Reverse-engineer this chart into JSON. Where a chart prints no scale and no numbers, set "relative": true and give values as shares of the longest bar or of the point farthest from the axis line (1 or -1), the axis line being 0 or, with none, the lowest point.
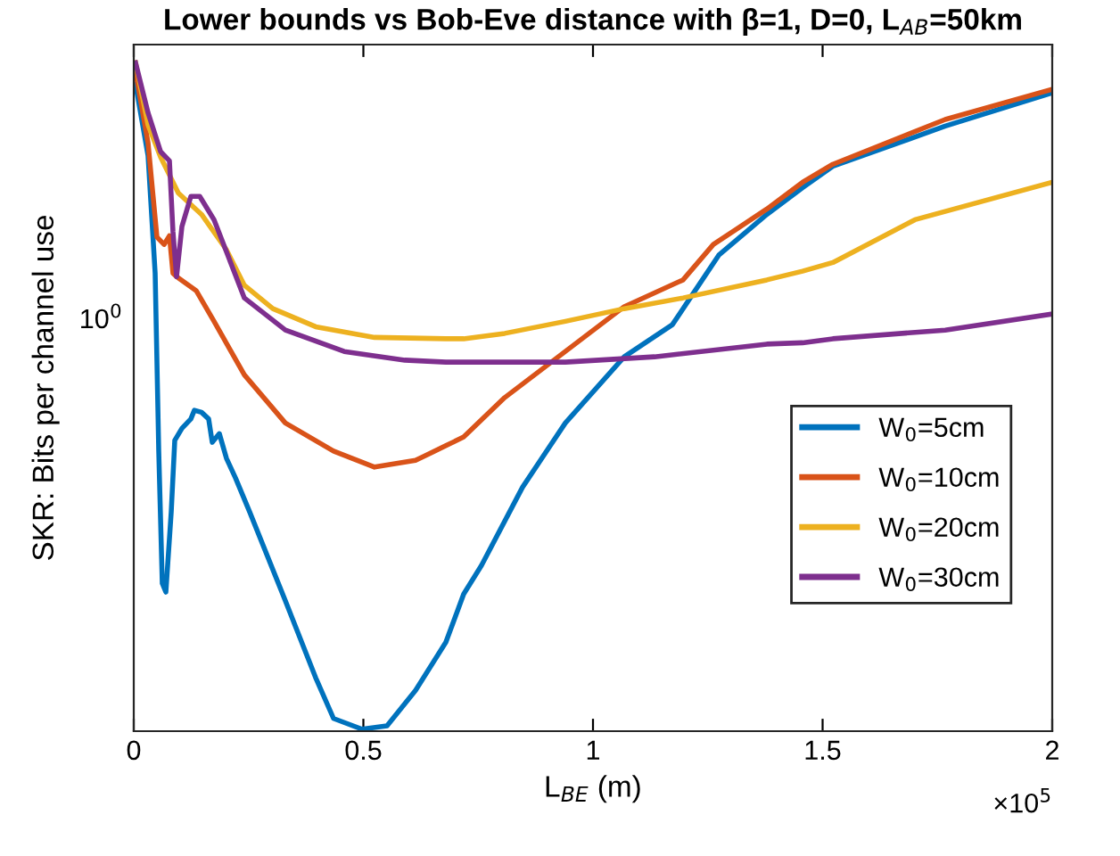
{
  "chart_data": {
    "type": "line",
    "title": "Lower bounds vs Bob-Eve distance with β=1, D=0, L$_{AB}$=50km",
    "xlabel": "L$_{BE}$ (m)",
    "ylabel": "SKR: Bits per channel use",
    "relative": true,
    "xlim": [
      0,
      2
    ],
    "xticks": [
      0,
      0.5,
      1,
      1.5,
      2
    ],
    "annotations": [
      "10$^{0}$",
      "×10$^{5}$"
    ],
    "legend": "right",
    "grid": false,
    "line_style": "solid",
    "marker": "none",
    "series": [
      {
        "name": "W$_{0}$=5cm",
        "color": "#0072bd",
        "x": [
          0.0039,
          0.0311,
          0.0466,
          0.0544,
          0.0621,
          0.0699,
          0.0816,
          0.0893,
          0.1049,
          0.1243,
          0.132,
          0.1476,
          0.1631,
          0.1709,
          0.1864,
          0.2019,
          0.2214,
          0.2524,
          0.3301,
          0.3961,
          0.435,
          0.4971,
          0.5515,
          0.6136,
          0.6796,
          0.7184,
          0.7573,
          0.8466,
          0.9398,
          1.068,
          1.1728,
          1.2117,
          1.2738,
          1.3786,
          1.4563,
          1.5223,
          1.767,
          2.0
        ],
        "values": [
          0.968,
          0.861,
          0.685,
          0.419,
          0.221,
          0.208,
          0.328,
          0.435,
          0.453,
          0.467,
          0.48,
          0.477,
          0.467,
          0.432,
          0.445,
          0.408,
          0.379,
          0.328,
          0.195,
          0.08,
          0.019,
          0.003,
          0.008,
          0.061,
          0.133,
          0.205,
          0.248,
          0.365,
          0.461,
          0.56,
          0.608,
          0.648,
          0.712,
          0.773,
          0.813,
          0.845,
          0.905,
          0.955
        ]
      },
      {
        "name": "W$_{0}$=10cm",
        "color": "#d95319",
        "x": [
          0.0039,
          0.0311,
          0.0505,
          0.066,
          0.0777,
          0.0854,
          0.0932,
          0.1359,
          0.1748,
          0.2408,
          0.3301,
          0.435,
          0.5243,
          0.6136,
          0.6796,
          0.7184,
          0.8078,
          0.9398,
          1.068,
          1.1961,
          1.2621,
          1.3786,
          1.4563,
          1.5223,
          1.767,
          2.0
        ],
        "values": [
          0.987,
          0.88,
          0.739,
          0.728,
          0.741,
          0.685,
          0.68,
          0.659,
          0.613,
          0.533,
          0.461,
          0.419,
          0.395,
          0.405,
          0.427,
          0.44,
          0.499,
          0.568,
          0.635,
          0.675,
          0.728,
          0.781,
          0.821,
          0.848,
          0.915,
          0.96
        ]
      },
      {
        "name": "W$_{0}$=20cm",
        "color": "#edb120",
        "x": [
          0.0039,
          0.0311,
          0.0583,
          0.0971,
          0.1476,
          0.2019,
          0.2408,
          0.3029,
          0.3961,
          0.5243,
          0.6796,
          0.7184,
          0.8078,
          0.9398,
          1.068,
          1.1961,
          1.3786,
          1.4563,
          1.5223,
          1.701,
          2.0
        ],
        "values": [
          1.0,
          0.907,
          0.859,
          0.805,
          0.773,
          0.72,
          0.667,
          0.632,
          0.605,
          0.589,
          0.587,
          0.587,
          0.595,
          0.613,
          0.632,
          0.648,
          0.675,
          0.688,
          0.701,
          0.765,
          0.821
        ]
      },
      {
        "name": "W$_{0}$=30cm",
        "color": "#7e2f8e",
        "x": [
          0.0039,
          0.0311,
          0.0583,
          0.0777,
          0.0854,
          0.0932,
          0.1049,
          0.1243,
          0.1437,
          0.1748,
          0.2408,
          0.3301,
          0.4583,
          0.5903,
          0.6796,
          0.7184,
          0.9398,
          1.134,
          1.3786,
          1.4563,
          1.5223,
          1.767,
          2.0
        ],
        "values": [
          1.0,
          0.925,
          0.867,
          0.853,
          0.747,
          0.68,
          0.755,
          0.8,
          0.8,
          0.765,
          0.648,
          0.6,
          0.568,
          0.555,
          0.552,
          0.552,
          0.552,
          0.56,
          0.579,
          0.581,
          0.587,
          0.6,
          0.624
        ]
      }
    ]
  }
}
